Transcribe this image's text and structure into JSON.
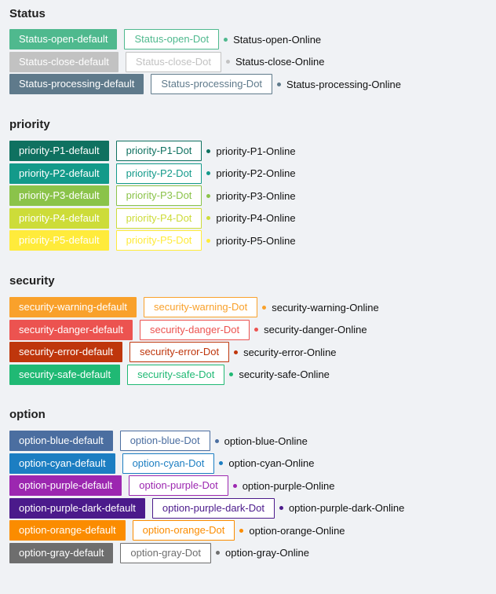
{
  "sections": [
    {
      "title": "Status",
      "items": [
        {
          "default": "Status-open-default",
          "dot": "Status-open-Dot",
          "online": "Status-open-Online",
          "color": "#4fb98e"
        },
        {
          "default": "Status-close-default",
          "dot": "Status-close-Dot",
          "online": "Status-close-Online",
          "color": "#c2c2c2"
        },
        {
          "default": "Status-processing-default",
          "dot": "Status-processing-Dot",
          "online": "Status-processing-Online",
          "color": "#5f7a8b"
        }
      ]
    },
    {
      "title": "priority",
      "items": [
        {
          "default": "priority-P1-default",
          "dot": "priority-P1-Dot",
          "online": "priority-P1-Online",
          "color": "#0f7160"
        },
        {
          "default": "priority-P2-default",
          "dot": "priority-P2-Dot",
          "online": "priority-P2-Online",
          "color": "#139a8a"
        },
        {
          "default": "priority-P3-default",
          "dot": "priority-P3-Dot",
          "online": "priority-P3-Online",
          "color": "#8bc34a"
        },
        {
          "default": "priority-P4-default",
          "dot": "priority-P4-Dot",
          "online": "priority-P4-Online",
          "color": "#cddc39"
        },
        {
          "default": "priority-P5-default",
          "dot": "priority-P5-Dot",
          "online": "priority-P5-Online",
          "color": "#ffeb3b"
        }
      ]
    },
    {
      "title": "security",
      "items": [
        {
          "default": "security-warning-default",
          "dot": "security-warning-Dot",
          "online": "security-warning-Online",
          "color": "#f9a12b"
        },
        {
          "default": "security-danger-default",
          "dot": "security-danger-Dot",
          "online": "security-danger-Online",
          "color": "#ec5350"
        },
        {
          "default": "security-error-default",
          "dot": "security-error-Dot",
          "online": "security-error-Online",
          "color": "#bf360c"
        },
        {
          "default": "security-safe-default",
          "dot": "security-safe-Dot",
          "online": "security-safe-Online",
          "color": "#20b974"
        }
      ]
    },
    {
      "title": "option",
      "items": [
        {
          "default": "option-blue-default",
          "dot": "option-blue-Dot",
          "online": "option-blue-Online",
          "color": "#4b6ea0"
        },
        {
          "default": "option-cyan-default",
          "dot": "option-cyan-Dot",
          "online": "option-cyan-Online",
          "color": "#1c7ec2"
        },
        {
          "default": "option-purple-default",
          "dot": "option-purple-Dot",
          "online": "option-purple-Online",
          "color": "#9c27b0"
        },
        {
          "default": "option-purple-dark-default",
          "dot": "option-purple-dark-Dot",
          "online": "option-purple-dark-Online",
          "color": "#4b1a8b"
        },
        {
          "default": "option-orange-default",
          "dot": "option-orange-Dot",
          "online": "option-orange-Online",
          "color": "#fb8c00"
        },
        {
          "default": "option-gray-default",
          "dot": "option-gray-Dot",
          "online": "option-gray-Online",
          "color": "#6e6e6e"
        }
      ]
    }
  ]
}
